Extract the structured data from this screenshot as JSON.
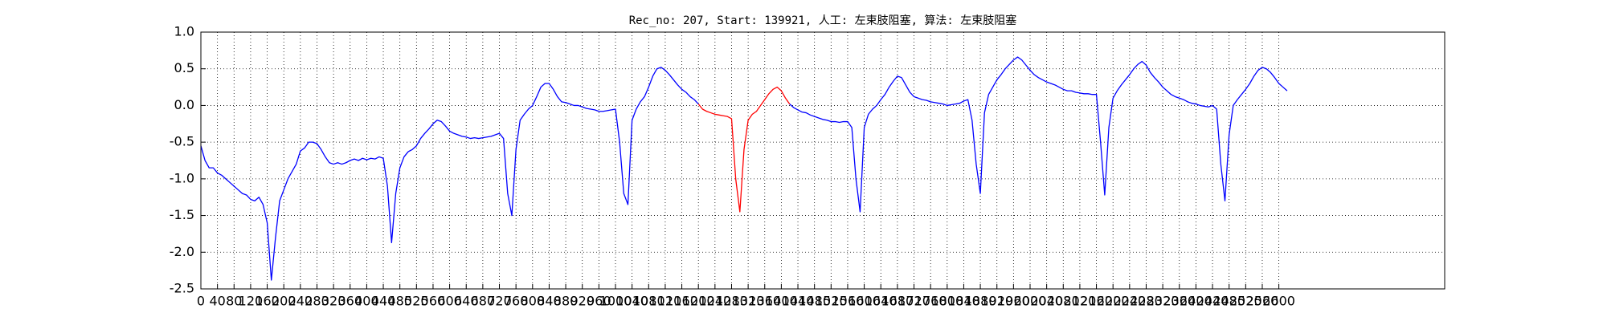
{
  "chart_data": {
    "type": "line",
    "title": "Rec_no: 207, Start: 139921, 人工: 左束肢阻塞, 算法: 左束肢阻塞",
    "xlim": [
      0,
      3000
    ],
    "ylim": [
      -2.5,
      1.0
    ],
    "grid": true,
    "xticks": [
      0,
      40,
      80,
      120,
      160,
      200,
      240,
      280,
      320,
      360,
      400,
      440,
      480,
      520,
      560,
      600,
      640,
      680,
      720,
      760,
      800,
      840,
      880,
      920,
      960,
      1000,
      1040,
      1080,
      1120,
      1160,
      1200,
      1240,
      1280,
      1320,
      1360,
      1400,
      1440,
      1480,
      1520,
      1560,
      1600,
      1640,
      1680,
      1720,
      1760,
      1800,
      1840,
      1880,
      1920,
      1960,
      2000,
      2040,
      2080,
      2120,
      2160,
      2200,
      2240,
      2280,
      2320,
      2360,
      2400,
      2440,
      2480,
      2520,
      2560,
      2600
    ],
    "yticks": [
      {
        "value": -2.5,
        "label": "-2.5"
      },
      {
        "value": -2,
        "label": "-2.0"
      },
      {
        "value": -1.5,
        "label": "-1.5"
      },
      {
        "value": -1,
        "label": "-1.0"
      },
      {
        "value": -0.5,
        "label": "-0.5"
      },
      {
        "value": 0,
        "label": "0.0"
      },
      {
        "value": 0.5,
        "label": "0.5"
      },
      {
        "value": 1,
        "label": "1.0"
      }
    ],
    "series": [
      {
        "color": "#0000ff",
        "x": [
          0,
          10,
          20,
          30,
          40,
          50,
          60,
          70,
          80,
          90,
          100,
          110,
          120,
          130,
          140,
          150,
          160,
          170,
          180,
          190,
          200,
          210,
          220,
          230,
          240,
          250,
          260,
          270,
          280,
          290,
          300,
          310,
          320,
          330,
          340,
          350,
          360,
          370,
          380,
          390,
          400,
          410,
          420,
          430,
          440,
          450,
          460,
          470,
          480,
          490,
          500,
          510,
          520,
          530,
          540,
          550,
          560,
          570,
          580,
          590,
          600,
          610,
          620,
          630,
          640,
          650,
          660,
          670,
          680,
          690,
          700,
          710,
          720,
          730,
          740,
          750,
          760,
          770,
          780,
          790,
          800,
          810,
          820,
          830,
          840,
          850,
          860,
          870,
          880,
          890,
          900,
          910,
          920,
          930,
          940,
          950,
          960,
          970,
          980,
          990,
          1000,
          1010,
          1020,
          1030,
          1040,
          1050,
          1060,
          1070,
          1080,
          1090,
          1100,
          1110,
          1120,
          1130,
          1140,
          1150,
          1160,
          1170,
          1180,
          1190,
          1200,
          1210,
          1220,
          1230,
          1240,
          1250,
          1260,
          1270,
          1280,
          1290,
          1300,
          1310,
          1320,
          1330,
          1340,
          1350,
          1360,
          1370,
          1380,
          1390,
          1400,
          1410,
          1420,
          1430,
          1440,
          1450,
          1460,
          1470,
          1480,
          1490,
          1500,
          1510,
          1520,
          1530,
          1540,
          1550,
          1560,
          1570,
          1580,
          1590,
          1600,
          1610,
          1620,
          1630,
          1640,
          1650,
          1660,
          1670,
          1680,
          1690,
          1700,
          1710,
          1720,
          1730,
          1740,
          1750,
          1760,
          1770,
          1780,
          1790,
          1800,
          1810,
          1820,
          1830,
          1840,
          1850,
          1860,
          1870,
          1880,
          1890,
          1900,
          1910,
          1920,
          1930,
          1940,
          1950,
          1960,
          1970,
          1980,
          1990,
          2000,
          2010,
          2020,
          2030,
          2040,
          2050,
          2060,
          2070,
          2080,
          2090,
          2100,
          2110,
          2120,
          2130,
          2140,
          2150,
          2160,
          2170,
          2180,
          2190,
          2200,
          2210,
          2220,
          2230,
          2240,
          2250,
          2260,
          2270,
          2280,
          2290,
          2300,
          2310,
          2320,
          2330,
          2340,
          2350,
          2360,
          2370,
          2380,
          2390,
          2400,
          2410,
          2420,
          2430,
          2440,
          2450,
          2460,
          2470,
          2480,
          2490,
          2500,
          2510,
          2520,
          2530,
          2540,
          2550,
          2560,
          2570,
          2580,
          2590,
          2600,
          2610,
          2620
        ],
        "values": [
          -0.55,
          -0.75,
          -0.85,
          -0.85,
          -0.92,
          -0.95,
          -1.0,
          -1.05,
          -1.1,
          -1.15,
          -1.2,
          -1.22,
          -1.28,
          -1.3,
          -1.25,
          -1.35,
          -1.6,
          -2.38,
          -1.8,
          -1.3,
          -1.15,
          -1.0,
          -0.9,
          -0.8,
          -0.62,
          -0.58,
          -0.5,
          -0.5,
          -0.52,
          -0.6,
          -0.7,
          -0.78,
          -0.8,
          -0.78,
          -0.8,
          -0.78,
          -0.75,
          -0.73,
          -0.75,
          -0.72,
          -0.74,
          -0.72,
          -0.73,
          -0.7,
          -0.72,
          -1.1,
          -1.87,
          -1.2,
          -0.85,
          -0.7,
          -0.63,
          -0.6,
          -0.55,
          -0.45,
          -0.38,
          -0.32,
          -0.25,
          -0.2,
          -0.22,
          -0.28,
          -0.35,
          -0.38,
          -0.4,
          -0.42,
          -0.43,
          -0.45,
          -0.44,
          -0.45,
          -0.44,
          -0.43,
          -0.42,
          -0.4,
          -0.38,
          -0.45,
          -1.2,
          -1.5,
          -0.6,
          -0.2,
          -0.12,
          -0.05,
          0.0,
          0.12,
          0.25,
          0.3,
          0.3,
          0.22,
          0.12,
          0.05,
          0.04,
          0.02,
          0.0,
          0.0,
          -0.02,
          -0.04,
          -0.05,
          -0.06,
          -0.08,
          -0.08,
          -0.07,
          -0.06,
          -0.05,
          -0.5,
          -1.2,
          -1.35,
          -0.2,
          -0.05,
          0.05,
          0.12,
          0.25,
          0.4,
          0.5,
          0.52,
          0.48,
          0.42,
          0.35,
          0.28,
          0.22,
          0.18,
          0.12,
          0.08,
          0.02,
          null,
          null,
          null,
          null,
          null,
          null,
          null,
          null,
          null,
          null,
          null,
          null,
          null,
          null,
          null,
          null,
          null,
          null,
          null,
          null,
          null,
          0.02,
          -0.03,
          -0.06,
          -0.09,
          -0.1,
          -0.13,
          -0.15,
          -0.17,
          -0.19,
          -0.2,
          -0.22,
          -0.22,
          -0.23,
          -0.22,
          -0.22,
          -0.3,
          -1.0,
          -1.45,
          -0.3,
          -0.12,
          -0.05,
          0.0,
          0.08,
          0.15,
          0.25,
          0.33,
          0.4,
          0.38,
          0.28,
          0.18,
          0.12,
          0.1,
          0.08,
          0.07,
          0.05,
          0.04,
          0.03,
          0.02,
          0.0,
          0.01,
          0.02,
          0.03,
          0.06,
          0.08,
          -0.2,
          -0.8,
          -1.2,
          -0.1,
          0.15,
          0.25,
          0.35,
          0.42,
          0.5,
          0.56,
          0.62,
          0.66,
          0.62,
          0.55,
          0.48,
          0.42,
          0.38,
          0.35,
          0.32,
          0.3,
          0.28,
          0.25,
          0.22,
          0.2,
          0.2,
          0.18,
          0.17,
          0.16,
          0.16,
          0.15,
          0.15,
          -0.5,
          -1.22,
          -0.3,
          0.1,
          0.2,
          0.28,
          0.35,
          0.42,
          0.5,
          0.56,
          0.6,
          0.55,
          0.45,
          0.38,
          0.32,
          0.25,
          0.2,
          0.15,
          0.12,
          0.1,
          0.08,
          0.05,
          0.03,
          0.02,
          0.0,
          -0.01,
          -0.02,
          0.0,
          -0.05,
          -0.8,
          -1.3,
          -0.4,
          0.0,
          0.08,
          0.15,
          0.22,
          0.3,
          0.4,
          0.48,
          0.52,
          0.5,
          0.45,
          0.38,
          0.3,
          0.25,
          0.2
        ]
      },
      {
        "color": "#ff0000",
        "x": [
          1200,
          1210,
          1220,
          1230,
          1240,
          1250,
          1260,
          1270,
          1280,
          1290,
          1300,
          1310,
          1320,
          1330,
          1340,
          1350,
          1360,
          1370,
          1380,
          1390,
          1400,
          1410,
          1420
        ],
        "values": [
          0.02,
          -0.05,
          -0.08,
          -0.1,
          -0.12,
          -0.13,
          -0.14,
          -0.15,
          -0.18,
          -1.0,
          -1.45,
          -0.6,
          -0.2,
          -0.12,
          -0.08,
          0.0,
          0.08,
          0.16,
          0.22,
          0.25,
          0.2,
          0.1,
          0.02
        ]
      }
    ]
  }
}
